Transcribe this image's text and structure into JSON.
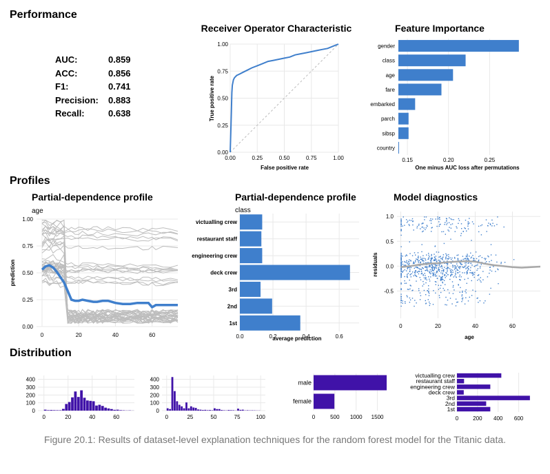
{
  "sections": {
    "performance": "Performance",
    "profiles": "Profiles",
    "distribution": "Distribution"
  },
  "metrics": [
    {
      "label": "AUC:",
      "value": "0.859"
    },
    {
      "label": "ACC:",
      "value": "0.856"
    },
    {
      "label": "F1:",
      "value": "0.741"
    },
    {
      "label": "Precision:",
      "value": "0.883"
    },
    {
      "label": "Recall:",
      "value": "0.638"
    }
  ],
  "caption": "Figure 20.1: Results of dataset-level explanation techniques for the random forest model for the Titanic data.",
  "colors": {
    "blue": "#3f7fcc",
    "purple": "#4012a8",
    "grey": "#bdbdbd",
    "grid": "#e8e8e8"
  },
  "chart_data": [
    {
      "id": "roc",
      "type": "line",
      "title": "Receiver Operator Characteristic",
      "xlabel": "False positive rate",
      "ylabel": "True positive rate",
      "xlim": [
        0,
        1
      ],
      "ylim": [
        0,
        1
      ],
      "xticks": [
        "0.00",
        "0.25",
        "0.50",
        "0.75",
        "1.00"
      ],
      "yticks": [
        "0.00",
        "0.25",
        "0.50",
        "0.75",
        "1.00"
      ],
      "grid": true,
      "x": [
        0,
        0.01,
        0.015,
        0.02,
        0.03,
        0.04,
        0.06,
        0.08,
        0.12,
        0.16,
        0.2,
        0.25,
        0.3,
        0.35,
        0.4,
        0.45,
        0.5,
        0.55,
        0.6,
        0.65,
        0.7,
        0.75,
        0.8,
        0.85,
        0.9,
        0.95,
        1.0
      ],
      "y": [
        0,
        0.35,
        0.55,
        0.62,
        0.67,
        0.69,
        0.71,
        0.72,
        0.74,
        0.76,
        0.78,
        0.8,
        0.82,
        0.84,
        0.85,
        0.86,
        0.87,
        0.88,
        0.9,
        0.91,
        0.92,
        0.93,
        0.94,
        0.95,
        0.96,
        0.98,
        1.0
      ],
      "diagonal": true
    },
    {
      "id": "feature-importance",
      "type": "bar",
      "orientation": "horizontal",
      "title": "Feature Importance",
      "xlabel": "One minus AUC loss after permutations",
      "xlim": [
        0.139,
        0.3
      ],
      "xticks": [
        0.15,
        0.2,
        0.25
      ],
      "xticklabels": [
        "0.15",
        "0.20",
        "0.25"
      ],
      "categories": [
        "gender",
        "class",
        "age",
        "fare",
        "embarked",
        "parch",
        "sibsp",
        "country"
      ],
      "values": [
        0.2856,
        0.2208,
        0.2055,
        0.1914,
        0.1594,
        0.1514,
        0.1514,
        0.139
      ],
      "baseline": 0.139
    },
    {
      "id": "pd-age",
      "type": "line",
      "title": "Partial-dependence profile",
      "variable": "age",
      "ylabel": "prediction",
      "xlim": [
        -3,
        74
      ],
      "ylim": [
        0,
        1
      ],
      "xticks": [
        0,
        20,
        40,
        60
      ],
      "yticks": [
        "0.00",
        "0.25",
        "0.50",
        "0.75",
        "1.00"
      ],
      "average": {
        "x": [
          0,
          2,
          4,
          6,
          8,
          10,
          12,
          14,
          16,
          18,
          20,
          22,
          25,
          28,
          30,
          33,
          36,
          40,
          44,
          48,
          52,
          55,
          58,
          60,
          62,
          66,
          70,
          74
        ],
        "y": [
          0.53,
          0.56,
          0.57,
          0.55,
          0.51,
          0.46,
          0.41,
          0.33,
          0.25,
          0.24,
          0.24,
          0.25,
          0.24,
          0.23,
          0.23,
          0.24,
          0.24,
          0.22,
          0.21,
          0.21,
          0.22,
          0.22,
          0.22,
          0.18,
          0.2,
          0.2,
          0.2,
          0.2
        ]
      },
      "individual_profiles": 44
    },
    {
      "id": "pd-class",
      "type": "bar",
      "orientation": "horizontal",
      "title": "Partial-dependence profile",
      "variable": "class",
      "xlabel": "average prediction",
      "xlim": [
        0,
        0.72
      ],
      "xticks": [
        0.0,
        0.2,
        0.4,
        0.6
      ],
      "xticklabels": [
        "0.0",
        "0.2",
        "0.4",
        "0.6"
      ],
      "categories": [
        "victualling crew",
        "restaurant staff",
        "engineering crew",
        "deck crew",
        "3rd",
        "2nd",
        "1st"
      ],
      "values": [
        0.135,
        0.13,
        0.135,
        0.665,
        0.125,
        0.195,
        0.365
      ]
    },
    {
      "id": "model-diagnostics",
      "type": "scatter",
      "title": "Model diagnostics",
      "xlabel": "age",
      "ylabel": "residuals",
      "xlim": [
        -2,
        75
      ],
      "ylim": [
        -1.05,
        1.1
      ],
      "xticks": [
        0,
        20,
        40,
        60
      ],
      "yticks": [
        -0.5,
        0.0,
        0.5,
        1.0
      ],
      "yticklabels": [
        "-0.5",
        "0.0",
        "0.5",
        "1.0"
      ],
      "points": 900,
      "smooth": {
        "x": [
          0,
          5,
          10,
          15,
          20,
          25,
          30,
          35,
          40,
          45,
          50,
          55,
          60,
          65,
          70,
          75
        ],
        "y": [
          -0.02,
          0.0,
          0.03,
          0.05,
          0.06,
          0.08,
          0.09,
          0.1,
          0.09,
          0.05,
          0.02,
          0.0,
          -0.02,
          -0.03,
          -0.02,
          -0.01
        ]
      }
    },
    {
      "id": "dist-age",
      "type": "bar",
      "xlim": [
        -5,
        75
      ],
      "ylim": [
        0,
        450
      ],
      "xticks": [
        0,
        20,
        40,
        60
      ],
      "yticks": [
        0,
        100,
        200,
        300,
        400
      ],
      "x": [
        0,
        2.5,
        5,
        7.5,
        10,
        12.5,
        15,
        17.5,
        20,
        22.5,
        25,
        27.5,
        30,
        32.5,
        35,
        37.5,
        40,
        42.5,
        45,
        47.5,
        50,
        52.5,
        55,
        57.5,
        60,
        62.5,
        65,
        67.5,
        70,
        72.5
      ],
      "values": [
        12,
        6,
        8,
        6,
        5,
        5,
        22,
        85,
        110,
        170,
        245,
        175,
        260,
        165,
        130,
        125,
        120,
        65,
        75,
        60,
        38,
        28,
        20,
        10,
        12,
        6,
        4,
        2,
        3,
        1
      ]
    },
    {
      "id": "dist-fare",
      "type": "bar",
      "xlim": [
        -5,
        105
      ],
      "ylim": [
        0,
        450
      ],
      "xticks": [
        0,
        25,
        50,
        75,
        100
      ],
      "yticks": [
        0,
        100,
        200,
        300,
        400
      ],
      "x": [
        0,
        2.5,
        5,
        7.5,
        10,
        12.5,
        15,
        17.5,
        20,
        22.5,
        25,
        27.5,
        30,
        32.5,
        35,
        37.5,
        40,
        42.5,
        45,
        47.5,
        50,
        52.5,
        55,
        57.5,
        60,
        62.5,
        65,
        67.5,
        70,
        72.5,
        75,
        77.5,
        80,
        82.5,
        85,
        87.5,
        90,
        92.5,
        95,
        97.5
      ],
      "values": [
        30,
        20,
        430,
        250,
        120,
        75,
        55,
        30,
        105,
        30,
        55,
        40,
        35,
        15,
        12,
        8,
        10,
        6,
        8,
        5,
        30,
        20,
        20,
        8,
        5,
        3,
        8,
        6,
        5,
        2,
        25,
        10,
        12,
        3,
        5,
        3,
        4,
        3,
        2,
        2
      ]
    },
    {
      "id": "dist-gender",
      "type": "bar",
      "orientation": "horizontal",
      "xlim": [
        0,
        1750
      ],
      "xticks": [
        0,
        500,
        1000,
        1500
      ],
      "categories": [
        "male",
        "female"
      ],
      "values": [
        1718,
        489
      ]
    },
    {
      "id": "dist-class",
      "type": "bar",
      "orientation": "horizontal",
      "xlim": [
        0,
        730
      ],
      "xticks": [
        0,
        200,
        400,
        600
      ],
      "categories": [
        "victualling crew",
        "restaurant staff",
        "engineering crew",
        "deck crew",
        "3rd",
        "2nd",
        "1st"
      ],
      "values": [
        431,
        69,
        324,
        66,
        709,
        284,
        324
      ]
    }
  ]
}
